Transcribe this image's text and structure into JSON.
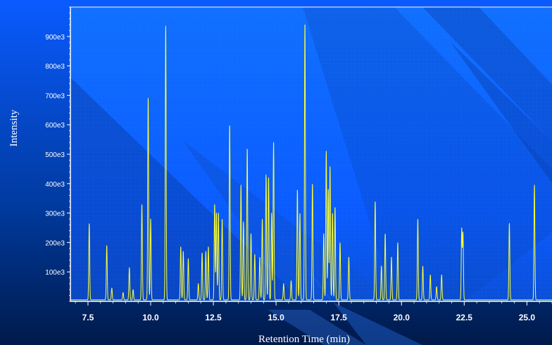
{
  "chart_data": {
    "type": "line",
    "title": "",
    "xlabel": "Retention Time (min)",
    "ylabel": "Intensity",
    "xlim": [
      6.8,
      26.0
    ],
    "ylim": [
      0,
      1000000
    ],
    "x_ticks": [
      7.5,
      10.0,
      12.5,
      15.0,
      17.5,
      20.0,
      22.5,
      25.0
    ],
    "x_tick_labels": [
      "7.5",
      "10.0",
      "12.5",
      "15.0",
      "17.5",
      "20.0",
      "22.5",
      "25.0"
    ],
    "y_ticks": [
      100000,
      200000,
      300000,
      400000,
      500000,
      600000,
      700000,
      800000,
      900000
    ],
    "y_tick_labels": [
      "100e3",
      "200e3",
      "300e3",
      "400e3",
      "500e3",
      "600e3",
      "700e3",
      "800e3",
      "900e3"
    ],
    "baseline": 5000,
    "grid": false,
    "line_color": "#ffff33",
    "axis_color": "#ffffff",
    "background_colors": [
      "#0a5bff",
      "#003a9e",
      "#001a4a"
    ],
    "series": [
      {
        "peaks": [
          [
            7.55,
            265000
          ],
          [
            8.25,
            190000
          ],
          [
            8.45,
            45000
          ],
          [
            8.9,
            30000
          ],
          [
            9.15,
            115000
          ],
          [
            9.3,
            40000
          ],
          [
            9.65,
            330000
          ],
          [
            9.9,
            690000
          ],
          [
            10.0,
            280000
          ],
          [
            10.6,
            935000
          ],
          [
            11.2,
            185000
          ],
          [
            11.3,
            170000
          ],
          [
            11.5,
            145000
          ],
          [
            11.9,
            60000
          ],
          [
            12.05,
            165000
          ],
          [
            12.2,
            170000
          ],
          [
            12.3,
            185000
          ],
          [
            12.55,
            330000
          ],
          [
            12.62,
            300000
          ],
          [
            12.7,
            300000
          ],
          [
            12.85,
            280000
          ],
          [
            13.15,
            600000
          ],
          [
            13.6,
            395000
          ],
          [
            13.7,
            270000
          ],
          [
            13.85,
            520000
          ],
          [
            14.0,
            230000
          ],
          [
            14.15,
            160000
          ],
          [
            14.35,
            150000
          ],
          [
            14.45,
            280000
          ],
          [
            14.6,
            430000
          ],
          [
            14.7,
            420000
          ],
          [
            14.82,
            300000
          ],
          [
            14.9,
            540000
          ],
          [
            15.3,
            60000
          ],
          [
            15.6,
            70000
          ],
          [
            15.85,
            380000
          ],
          [
            15.95,
            300000
          ],
          [
            16.15,
            945000
          ],
          [
            16.45,
            400000
          ],
          [
            16.9,
            230000
          ],
          [
            17.0,
            510000
          ],
          [
            17.08,
            380000
          ],
          [
            17.15,
            460000
          ],
          [
            17.25,
            300000
          ],
          [
            17.35,
            320000
          ],
          [
            17.55,
            200000
          ],
          [
            17.9,
            150000
          ],
          [
            18.95,
            340000
          ],
          [
            19.2,
            120000
          ],
          [
            19.35,
            230000
          ],
          [
            19.6,
            150000
          ],
          [
            19.85,
            200000
          ],
          [
            20.65,
            280000
          ],
          [
            20.85,
            120000
          ],
          [
            21.15,
            90000
          ],
          [
            21.4,
            50000
          ],
          [
            21.6,
            90000
          ],
          [
            22.4,
            245000
          ],
          [
            22.45,
            230000
          ],
          [
            24.3,
            265000
          ],
          [
            25.3,
            395000
          ]
        ]
      }
    ]
  }
}
